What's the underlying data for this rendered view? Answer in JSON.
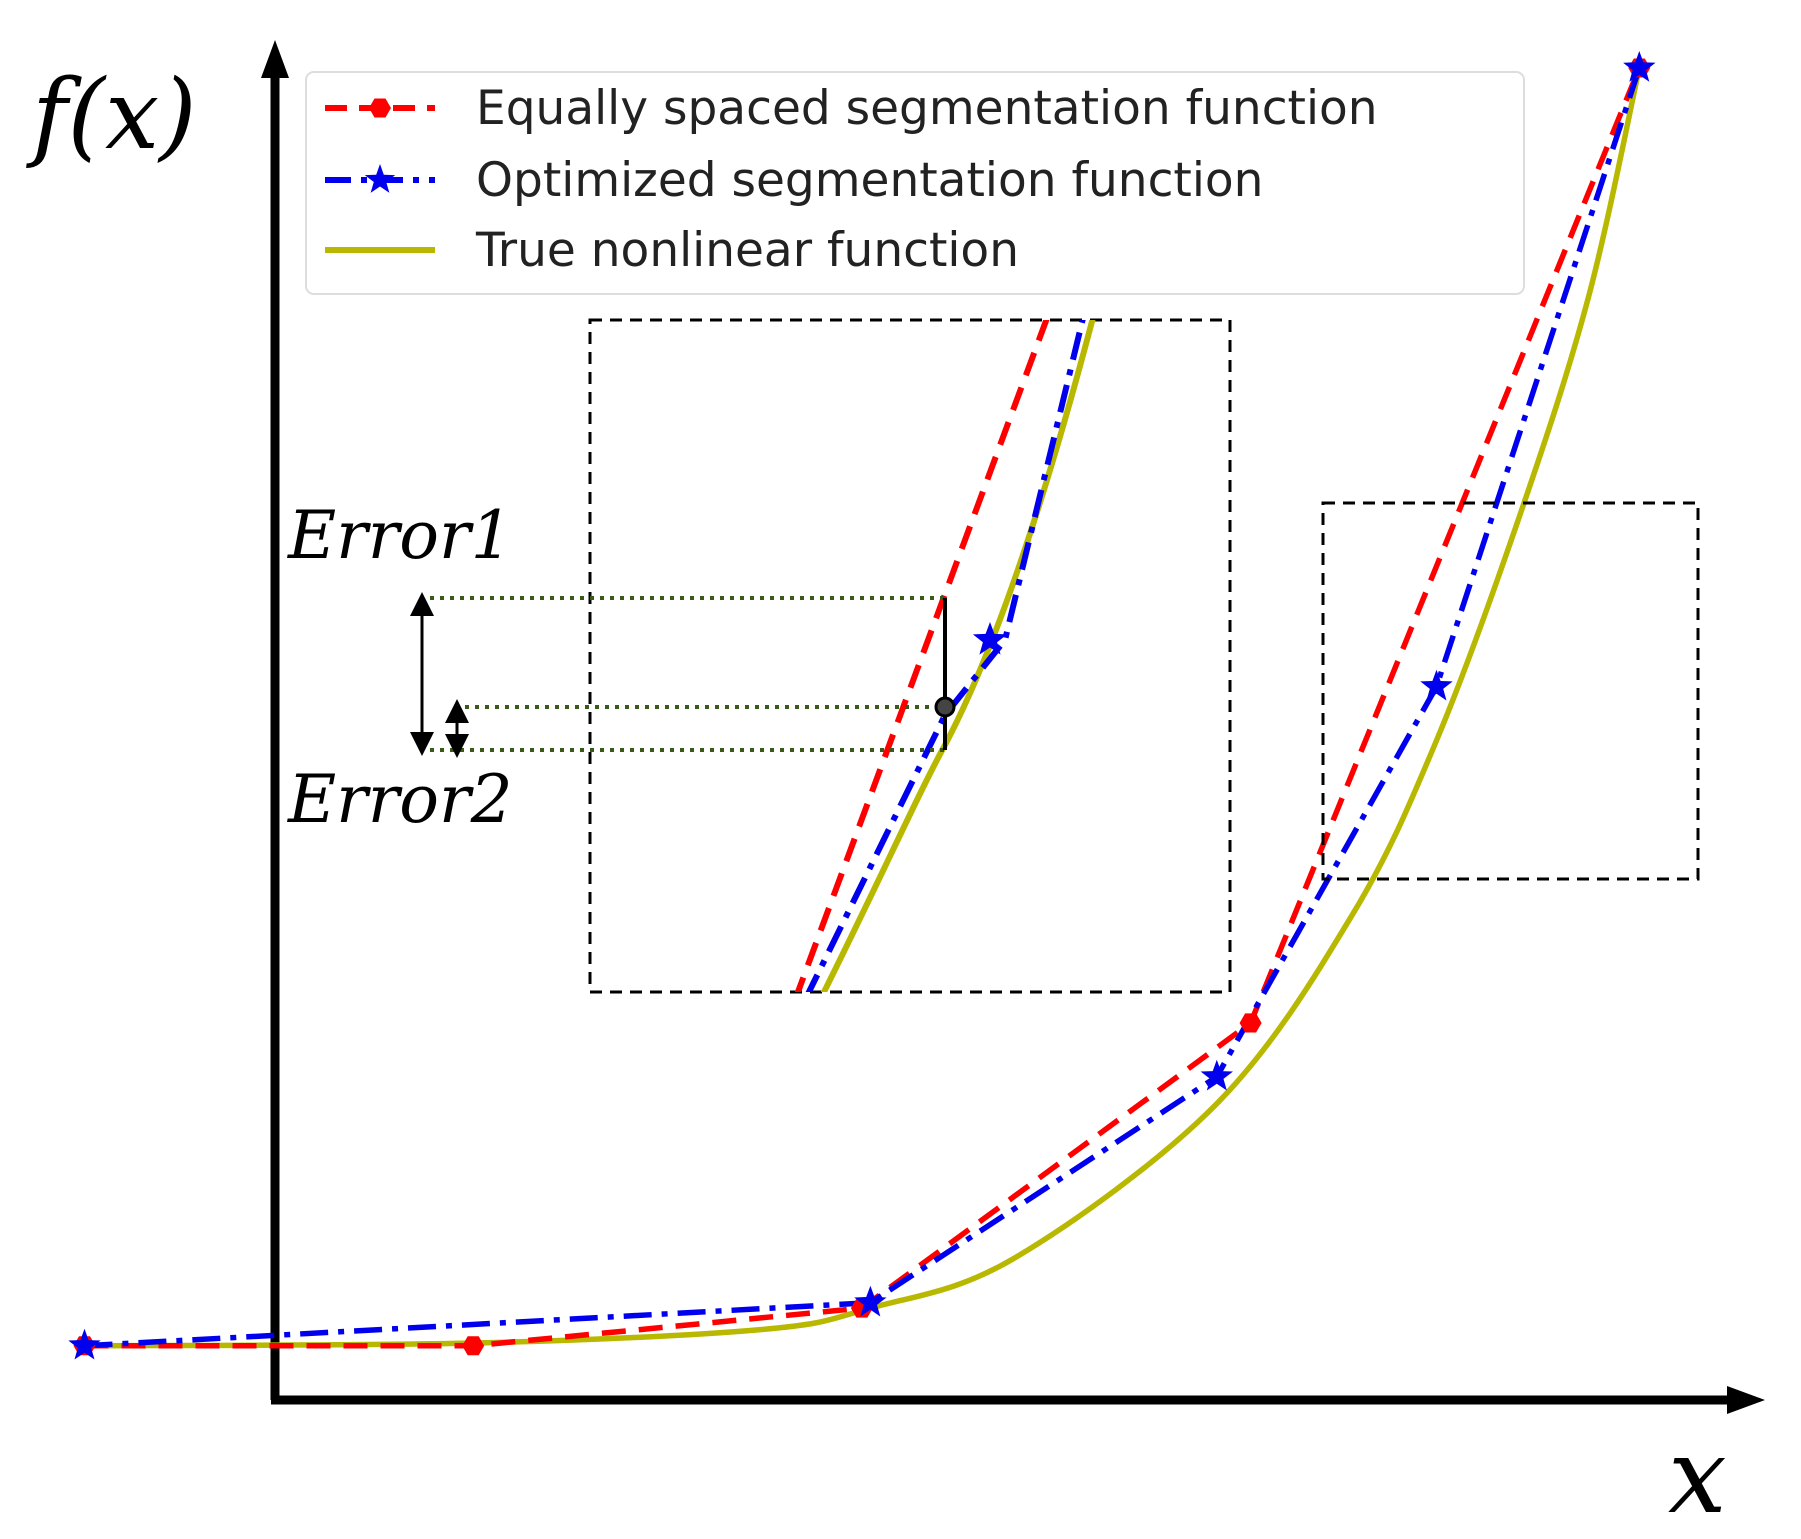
{
  "chart_data": {
    "type": "line",
    "title": "",
    "ylabel": "f(x)",
    "xlabel": "x",
    "xlim": [
      0,
      10
    ],
    "ylim": [
      0,
      10
    ],
    "colors": {
      "equal": "#ff0000",
      "optimized": "#0000ee",
      "true": "#b8b800",
      "axis": "#000000",
      "error_guides": "#3a5a1a"
    },
    "legend": {
      "position": "top",
      "entries": [
        "Equally spaced segmentation function",
        "Optimized segmentation function",
        "True nonlinear function"
      ]
    },
    "series": [
      {
        "name": "Equally spaced segmentation function",
        "style": "dashed",
        "marker": "hexagon",
        "x": [
          0.5,
          2.8,
          5.1,
          7.4,
          9.7
        ],
        "y": [
          0.5,
          0.5,
          0.78,
          2.9,
          10.0
        ]
      },
      {
        "name": "Optimized segmentation function",
        "style": "dashdot",
        "marker": "star",
        "x": [
          0.5,
          5.15,
          7.2,
          8.5,
          9.7
        ],
        "y": [
          0.5,
          0.82,
          2.5,
          5.4,
          10.0
        ]
      },
      {
        "name": "True nonlinear function",
        "style": "solid",
        "marker": "none",
        "curve": "exponential",
        "x": [
          0.5,
          2.8,
          4.5,
          5.15,
          6.0,
          7.2,
          8.0,
          8.5,
          9.0,
          9.4,
          9.7
        ],
        "y": [
          0.5,
          0.52,
          0.62,
          0.78,
          1.15,
          2.3,
          3.7,
          5.0,
          6.7,
          8.3,
          10.0
        ]
      }
    ],
    "annotations": {
      "error1_label": "Error1",
      "error2_label": "Error2"
    },
    "zoom_inset": {
      "source_region": {
        "x": [
          8.2,
          10.8
        ],
        "y": [
          4.2,
          7.0
        ]
      },
      "inset_view": {
        "x": [
          5.2,
          9.6
        ],
        "y": [
          3.3,
          8.3
        ]
      },
      "error_sample_x": 7.65,
      "equal_segment": [
        [
          7.4,
          2.9
        ],
        [
          9.7,
          10.0
        ]
      ],
      "optimized_segments": [
        [
          [
            7.2,
            2.5
          ],
          [
            8.5,
            5.4
          ]
        ],
        [
          [
            8.5,
            5.4
          ],
          [
            9.7,
            10.0
          ]
        ]
      ],
      "optimized_knot": [
        8.5,
        5.4
      ]
    }
  }
}
